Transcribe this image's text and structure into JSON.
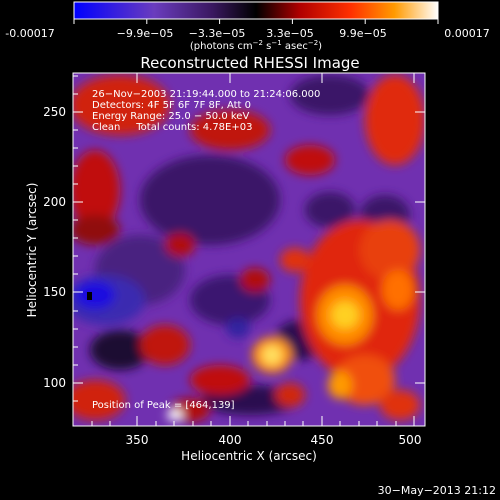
{
  "colorbar": {
    "tick_labels": [
      "-0.00017",
      "−9.9e−05",
      "−3.3e−05",
      "3.3e−05",
      "9.9e−05",
      "0.00017"
    ],
    "units_prefix": "(photons cm",
    "units_exp1": "−2",
    "units_mid": " s",
    "units_exp2": "−1",
    "units_mid2": " asec",
    "units_exp3": "−2",
    "units_suffix": ")",
    "colors": [
      "#0000ff",
      "#6a3cbe",
      "#3a1860",
      "#000000",
      "#b00000",
      "#ff3000",
      "#ff9a00",
      "#ffffff"
    ]
  },
  "plot": {
    "title": "Reconstructed RHESSI Image",
    "xlabel": "Heliocentric X (arcsec)",
    "ylabel": "Heliocentric Y (arcsec)",
    "x_ticks": [
      "350",
      "400",
      "450",
      "500"
    ],
    "y_ticks": [
      "100",
      "150",
      "200",
      "250"
    ],
    "x_range": [
      315,
      508
    ],
    "y_range": [
      75,
      270
    ],
    "annotations": {
      "time_range": "26−Nov−2003 21:19:44.000 to 21:24:06.000",
      "detectors": "Detectors: 4F 5F 6F 7F 8F, Att 0",
      "energy": "Energy Range: 25.0 − 50.0 keV",
      "clean": "Clean     Total counts: 4.78E+03",
      "peak": "Position of Peak = [464,139]"
    },
    "peak_position": [
      464,
      139
    ]
  },
  "footer": {
    "timestamp": "30−May−2013 21:12"
  }
}
